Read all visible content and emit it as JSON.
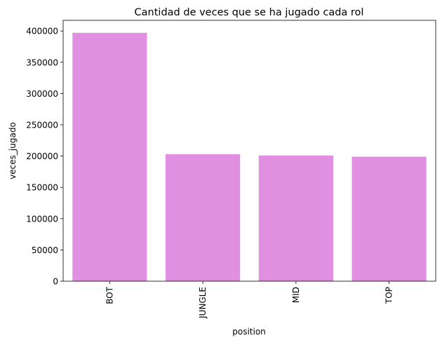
{
  "chart_data": {
    "type": "bar",
    "title": "Cantidad de veces que se ha jugado cada rol",
    "xlabel": "position",
    "ylabel": "veces_jugado",
    "categories": [
      "BOT",
      "JUNGLE",
      "MID",
      "TOP"
    ],
    "values": [
      397000,
      203000,
      201000,
      199000
    ],
    "ylim": [
      0,
      417000
    ],
    "yticks": [
      0,
      50000,
      100000,
      150000,
      200000,
      250000,
      300000,
      350000,
      400000
    ],
    "bar_color": "#e08fe1",
    "grid": false,
    "legend": "none",
    "xtick_rotation": "vertical"
  }
}
